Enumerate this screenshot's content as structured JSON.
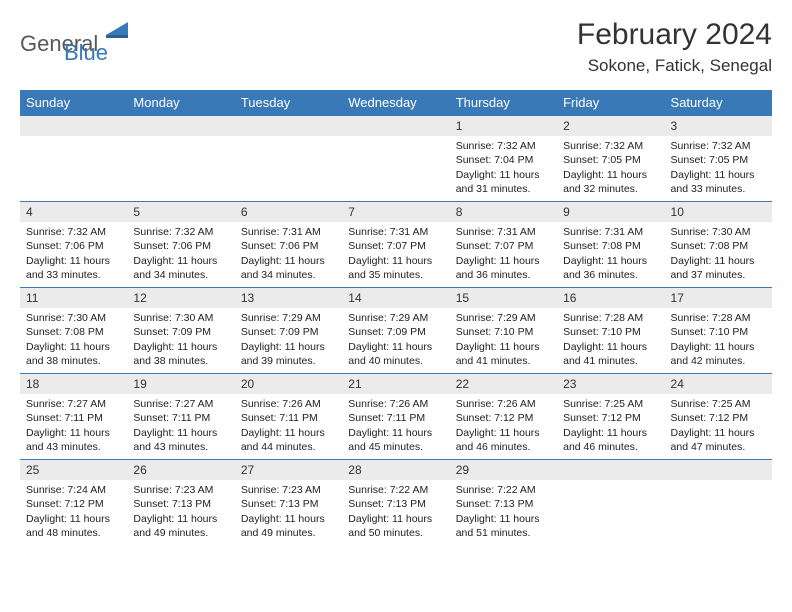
{
  "logo": {
    "part1": "General",
    "part2": "Blue"
  },
  "title": "February 2024",
  "location": "Sokone, Fatick, Senegal",
  "colors": {
    "header_bg": "#3a79b7",
    "header_text": "#ffffff",
    "daynum_bg": "#ebebeb",
    "border": "#3a79b7",
    "logo_gray": "#56595c",
    "logo_blue": "#3a79b7"
  },
  "day_headers": [
    "Sunday",
    "Monday",
    "Tuesday",
    "Wednesday",
    "Thursday",
    "Friday",
    "Saturday"
  ],
  "weeks": [
    [
      {
        "blank": true
      },
      {
        "blank": true
      },
      {
        "blank": true
      },
      {
        "blank": true
      },
      {
        "n": "1",
        "sunrise": "7:32 AM",
        "sunset": "7:04 PM",
        "dh": "11",
        "dm": "31"
      },
      {
        "n": "2",
        "sunrise": "7:32 AM",
        "sunset": "7:05 PM",
        "dh": "11",
        "dm": "32"
      },
      {
        "n": "3",
        "sunrise": "7:32 AM",
        "sunset": "7:05 PM",
        "dh": "11",
        "dm": "33"
      }
    ],
    [
      {
        "n": "4",
        "sunrise": "7:32 AM",
        "sunset": "7:06 PM",
        "dh": "11",
        "dm": "33"
      },
      {
        "n": "5",
        "sunrise": "7:32 AM",
        "sunset": "7:06 PM",
        "dh": "11",
        "dm": "34"
      },
      {
        "n": "6",
        "sunrise": "7:31 AM",
        "sunset": "7:06 PM",
        "dh": "11",
        "dm": "34"
      },
      {
        "n": "7",
        "sunrise": "7:31 AM",
        "sunset": "7:07 PM",
        "dh": "11",
        "dm": "35"
      },
      {
        "n": "8",
        "sunrise": "7:31 AM",
        "sunset": "7:07 PM",
        "dh": "11",
        "dm": "36"
      },
      {
        "n": "9",
        "sunrise": "7:31 AM",
        "sunset": "7:08 PM",
        "dh": "11",
        "dm": "36"
      },
      {
        "n": "10",
        "sunrise": "7:30 AM",
        "sunset": "7:08 PM",
        "dh": "11",
        "dm": "37"
      }
    ],
    [
      {
        "n": "11",
        "sunrise": "7:30 AM",
        "sunset": "7:08 PM",
        "dh": "11",
        "dm": "38"
      },
      {
        "n": "12",
        "sunrise": "7:30 AM",
        "sunset": "7:09 PM",
        "dh": "11",
        "dm": "38"
      },
      {
        "n": "13",
        "sunrise": "7:29 AM",
        "sunset": "7:09 PM",
        "dh": "11",
        "dm": "39"
      },
      {
        "n": "14",
        "sunrise": "7:29 AM",
        "sunset": "7:09 PM",
        "dh": "11",
        "dm": "40"
      },
      {
        "n": "15",
        "sunrise": "7:29 AM",
        "sunset": "7:10 PM",
        "dh": "11",
        "dm": "41"
      },
      {
        "n": "16",
        "sunrise": "7:28 AM",
        "sunset": "7:10 PM",
        "dh": "11",
        "dm": "41"
      },
      {
        "n": "17",
        "sunrise": "7:28 AM",
        "sunset": "7:10 PM",
        "dh": "11",
        "dm": "42"
      }
    ],
    [
      {
        "n": "18",
        "sunrise": "7:27 AM",
        "sunset": "7:11 PM",
        "dh": "11",
        "dm": "43"
      },
      {
        "n": "19",
        "sunrise": "7:27 AM",
        "sunset": "7:11 PM",
        "dh": "11",
        "dm": "43"
      },
      {
        "n": "20",
        "sunrise": "7:26 AM",
        "sunset": "7:11 PM",
        "dh": "11",
        "dm": "44"
      },
      {
        "n": "21",
        "sunrise": "7:26 AM",
        "sunset": "7:11 PM",
        "dh": "11",
        "dm": "45"
      },
      {
        "n": "22",
        "sunrise": "7:26 AM",
        "sunset": "7:12 PM",
        "dh": "11",
        "dm": "46"
      },
      {
        "n": "23",
        "sunrise": "7:25 AM",
        "sunset": "7:12 PM",
        "dh": "11",
        "dm": "46"
      },
      {
        "n": "24",
        "sunrise": "7:25 AM",
        "sunset": "7:12 PM",
        "dh": "11",
        "dm": "47"
      }
    ],
    [
      {
        "n": "25",
        "sunrise": "7:24 AM",
        "sunset": "7:12 PM",
        "dh": "11",
        "dm": "48"
      },
      {
        "n": "26",
        "sunrise": "7:23 AM",
        "sunset": "7:13 PM",
        "dh": "11",
        "dm": "49"
      },
      {
        "n": "27",
        "sunrise": "7:23 AM",
        "sunset": "7:13 PM",
        "dh": "11",
        "dm": "49"
      },
      {
        "n": "28",
        "sunrise": "7:22 AM",
        "sunset": "7:13 PM",
        "dh": "11",
        "dm": "50"
      },
      {
        "n": "29",
        "sunrise": "7:22 AM",
        "sunset": "7:13 PM",
        "dh": "11",
        "dm": "51"
      },
      {
        "blank": true
      },
      {
        "blank": true
      }
    ]
  ],
  "labels": {
    "sunrise": "Sunrise:",
    "sunset": "Sunset:",
    "daylight_prefix": "Daylight:",
    "hours_word": "hours",
    "and_word": "and",
    "minutes_word": "minutes."
  }
}
